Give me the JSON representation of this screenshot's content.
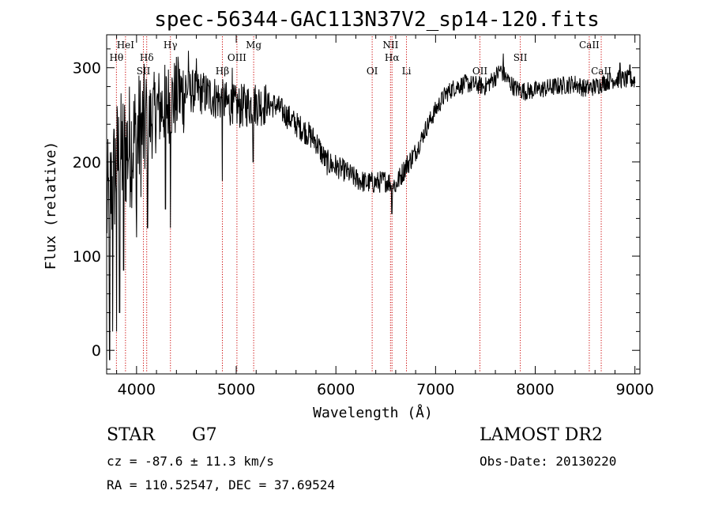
{
  "chart_data": {
    "type": "line",
    "title": "spec-56344-GAC113N37V2_sp14-120.fits",
    "xlabel": "Wavelength (Å)",
    "ylabel": "Flux (relative)",
    "xlim": [
      3700,
      9050
    ],
    "ylim": [
      -25,
      335
    ],
    "xticks": [
      4000,
      5000,
      6000,
      7000,
      8000,
      9000
    ],
    "yticks": [
      0,
      100,
      200,
      300
    ],
    "grid": false,
    "line_color": "#000000",
    "marker_color": "#cc0000",
    "spectral_lines": [
      {
        "name": "Hθ",
        "wavelength": 3798,
        "row": "upper2"
      },
      {
        "name": "HeI",
        "wavelength": 3889,
        "row": "upper1"
      },
      {
        "name": "SII",
        "wavelength": 4069,
        "row": "low"
      },
      {
        "name": "Hδ",
        "wavelength": 4102,
        "row": "upper2"
      },
      {
        "name": "Hγ",
        "wavelength": 4340,
        "row": "upper1"
      },
      {
        "name": "Hβ",
        "wavelength": 4861,
        "row": "low"
      },
      {
        "name": "OIII",
        "wavelength": 5007,
        "row": "upper2"
      },
      {
        "name": "Mg",
        "wavelength": 5175,
        "row": "upper1"
      },
      {
        "name": "OI",
        "wavelength": 6364,
        "row": "low"
      },
      {
        "name": "NII",
        "wavelength": 6548,
        "row": "upper1"
      },
      {
        "name": "Hα",
        "wavelength": 6563,
        "row": "upper2"
      },
      {
        "name": "Li",
        "wavelength": 6708,
        "row": "low"
      },
      {
        "name": "OII",
        "wavelength": 7445,
        "row": "low"
      },
      {
        "name": "SII",
        "wavelength": 7850,
        "row": "upper2"
      },
      {
        "name": "CaII",
        "wavelength": 8542,
        "row": "upper1"
      },
      {
        "name": "CaII",
        "wavelength": 8662,
        "row": "low"
      }
    ],
    "continuum": [
      [
        3700,
        150
      ],
      [
        3750,
        170
      ],
      [
        3800,
        200
      ],
      [
        3900,
        215
      ],
      [
        4000,
        225
      ],
      [
        4100,
        238
      ],
      [
        4200,
        255
      ],
      [
        4300,
        262
      ],
      [
        4400,
        268
      ],
      [
        4500,
        275
      ],
      [
        4600,
        275
      ],
      [
        4700,
        272
      ],
      [
        4800,
        268
      ],
      [
        4900,
        262
      ],
      [
        5000,
        258
      ],
      [
        5200,
        262
      ],
      [
        5400,
        260
      ],
      [
        5500,
        250
      ],
      [
        5600,
        240
      ],
      [
        5700,
        232
      ],
      [
        5800,
        222
      ],
      [
        5900,
        200
      ],
      [
        6000,
        195
      ],
      [
        6100,
        190
      ],
      [
        6200,
        182
      ],
      [
        6300,
        178
      ],
      [
        6400,
        178
      ],
      [
        6500,
        180
      ],
      [
        6600,
        176
      ],
      [
        6650,
        185
      ],
      [
        6700,
        195
      ],
      [
        6800,
        210
      ],
      [
        6900,
        235
      ],
      [
        7000,
        255
      ],
      [
        7100,
        272
      ],
      [
        7200,
        280
      ],
      [
        7300,
        283
      ],
      [
        7400,
        282
      ],
      [
        7500,
        280
      ],
      [
        7600,
        290
      ],
      [
        7650,
        298
      ],
      [
        7700,
        290
      ],
      [
        7800,
        278
      ],
      [
        7900,
        275
      ],
      [
        8000,
        276
      ],
      [
        8200,
        280
      ],
      [
        8400,
        283
      ],
      [
        8500,
        278
      ],
      [
        8600,
        280
      ],
      [
        8700,
        285
      ],
      [
        8800,
        288
      ],
      [
        9000,
        287
      ]
    ],
    "dips": [
      [
        3730,
        -10
      ],
      [
        3760,
        20
      ],
      [
        3800,
        20
      ],
      [
        3830,
        40
      ],
      [
        3870,
        85
      ],
      [
        4000,
        120
      ],
      [
        4110,
        130
      ],
      [
        4290,
        150
      ],
      [
        4340,
        130
      ],
      [
        4860,
        180
      ],
      [
        5170,
        200
      ],
      [
        6563,
        145
      ],
      [
        6600,
        168
      ]
    ],
    "peaks": [
      [
        3900,
        240
      ],
      [
        4100,
        275
      ],
      [
        4420,
        305
      ],
      [
        4520,
        318
      ],
      [
        4600,
        310
      ],
      [
        4960,
        300
      ],
      [
        7680,
        315
      ],
      [
        8850,
        305
      ],
      [
        8950,
        303
      ]
    ]
  },
  "info": {
    "object_type": "STAR",
    "subclass": "G7",
    "survey": "LAMOST DR2",
    "cz": "cz = -87.6 ± 11.3 km/s",
    "obs_date": "Obs-Date: 20130220",
    "coords": "RA = 110.52547, DEC =  37.69524"
  }
}
